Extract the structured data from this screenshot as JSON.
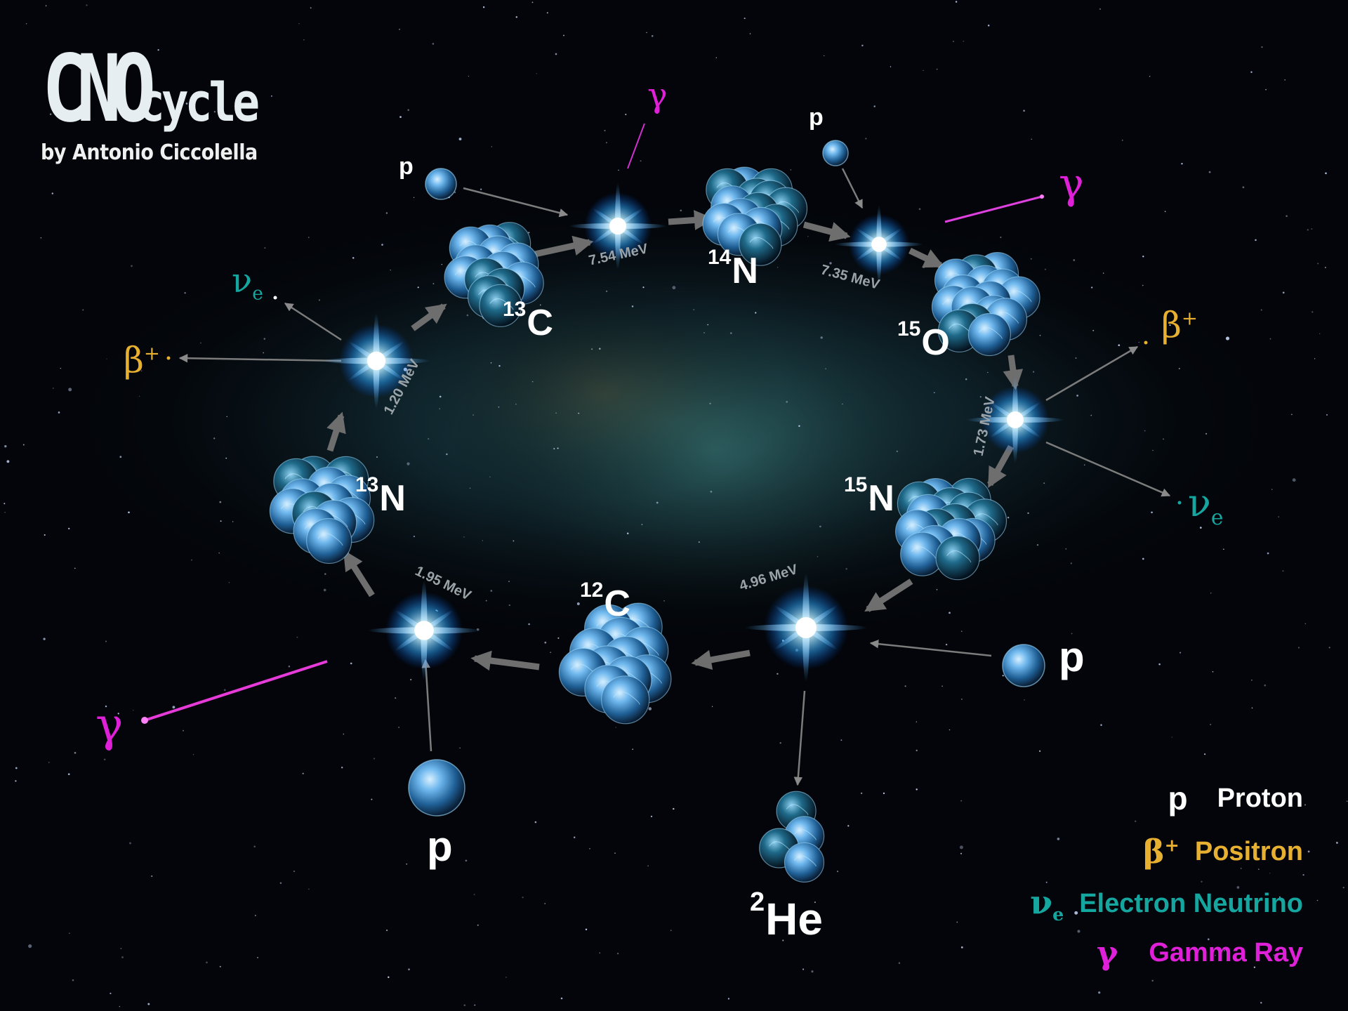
{
  "title": {
    "main": "CNO",
    "suffix": "cycle",
    "author": "by Antonio Ciccolella"
  },
  "isotopes": [
    {
      "id": "c13",
      "mass": "13",
      "element": "C"
    },
    {
      "id": "n14",
      "mass": "14",
      "element": "N"
    },
    {
      "id": "o15",
      "mass": "15",
      "element": "O"
    },
    {
      "id": "n15",
      "mass": "15",
      "element": "N"
    },
    {
      "id": "c12",
      "mass": "12",
      "element": "C"
    },
    {
      "id": "n13",
      "mass": "13",
      "element": "N"
    },
    {
      "id": "he2",
      "mass": "2",
      "element": "He"
    }
  ],
  "energies": [
    "7.54 MeV",
    "7.35 MeV",
    "1.20 MeV",
    "1.73 MeV",
    "4.96 MeV",
    "1.95 MeV"
  ],
  "symbols": {
    "proton": "p",
    "gamma": "γ",
    "beta": "β",
    "beta_charge": "+",
    "nu": "ν",
    "nu_sub": "e"
  },
  "legend": [
    {
      "symbol": "p",
      "label": "Proton",
      "color": "#ffffff"
    },
    {
      "symbol": "β+",
      "label": "Positron",
      "color": "#e8b030"
    },
    {
      "symbol": "νe",
      "label": "Electron Neutrino",
      "color": "#16a6a0"
    },
    {
      "symbol": "γ",
      "label": "Gamma Ray",
      "color": "#e020d8"
    }
  ],
  "colors": {
    "gamma": "#e020d8",
    "beta": "#e8b030",
    "neutrino": "#16a6a0",
    "nucleus": "#5fb4ff",
    "arrow": "#7a7a7a"
  }
}
